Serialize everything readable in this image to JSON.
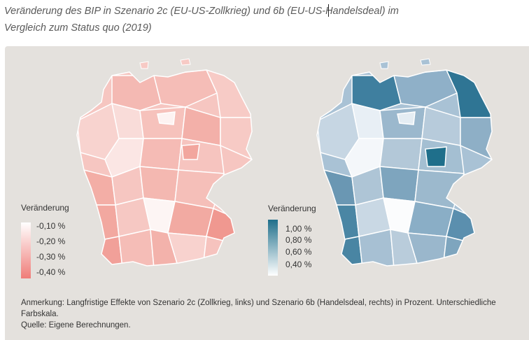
{
  "title_line1": "Veränderung des BIP in Szenario 2c (EU-US-Zollkrieg) und 6b (EU-US-Handelsdeal) im",
  "title_line2": "Vergleich zum Status quo (2019)",
  "left_map": {
    "legend_title": "Veränderung",
    "legend_labels": [
      "-0,10 %",
      "-0,20 %",
      "-0,30 %",
      "-0,40 %"
    ],
    "color_low": "#ffffff",
    "color_high": "#ef7c78"
  },
  "right_map": {
    "legend_title": "Veränderung",
    "legend_labels": [
      "1,00 %",
      "0,80 %",
      "0,60 %",
      "0,40 %"
    ],
    "color_low": "#ffffff",
    "color_high": "#1f6f8b"
  },
  "note": {
    "line1": "Anmerkung: Langfristige Effekte von Szenario 2c (Zollkrieg, links) und Szenario 6b (Handelsdeal, rechts) in Prozent. Unterschiedliche",
    "line2": "Farbskala.",
    "line3": "Quelle: Eigene Berechnungen."
  }
}
